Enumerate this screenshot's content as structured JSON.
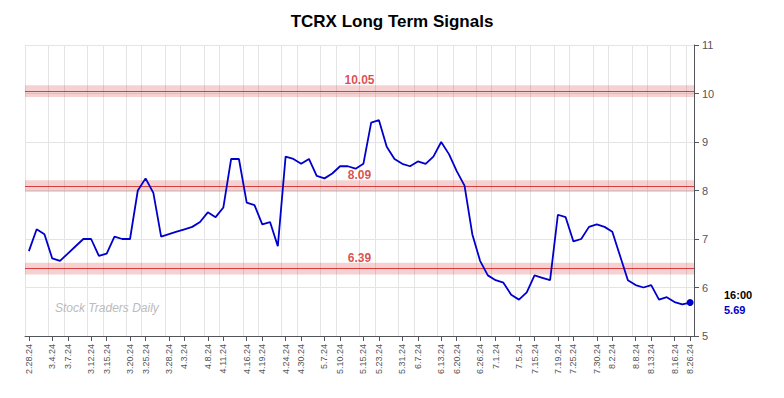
{
  "chart_data": {
    "type": "line",
    "title": "TCRX Long Term Signals",
    "categories": [
      "2.28.24",
      null,
      null,
      "3.4.24",
      null,
      "3.7.24",
      null,
      null,
      "3.12.24",
      null,
      "3.15.24",
      null,
      null,
      "3.20.24",
      null,
      "3.25.24",
      null,
      null,
      "3.28.24",
      null,
      "4.3.24",
      null,
      null,
      "4.8.24",
      null,
      "4.11.24",
      null,
      null,
      "4.16.24",
      null,
      "4.19.24",
      null,
      null,
      "4.24.24",
      null,
      "4.30.24",
      null,
      null,
      "5.7.24",
      null,
      "5.10.24",
      null,
      null,
      "5.15.24",
      null,
      "5.23.24",
      null,
      null,
      "5.31.24",
      null,
      "6.7.24",
      null,
      null,
      "6.13.24",
      null,
      "6.20.24",
      null,
      null,
      "6.26.24",
      null,
      "7.1.24",
      null,
      null,
      "7.5.24",
      null,
      "7.15.24",
      null,
      null,
      "7.19.24",
      null,
      "7.25.24",
      null,
      null,
      "7.30.24",
      null,
      "8.2.24",
      null,
      null,
      "8.8.24",
      null,
      "8.13.24",
      null,
      null,
      "8.16.24",
      null,
      "8.26.24"
    ],
    "values": [
      6.75,
      7.2,
      7.1,
      6.6,
      6.55,
      6.7,
      6.85,
      7.0,
      7.0,
      6.65,
      6.7,
      7.05,
      7.0,
      7.0,
      8.0,
      8.25,
      7.95,
      7.05,
      7.1,
      7.15,
      7.2,
      7.25,
      7.35,
      7.55,
      7.45,
      7.65,
      8.65,
      8.65,
      7.75,
      7.7,
      7.3,
      7.35,
      6.85,
      8.7,
      8.65,
      8.55,
      8.65,
      8.3,
      8.25,
      8.35,
      8.5,
      8.5,
      8.45,
      8.55,
      9.4,
      9.45,
      8.9,
      8.65,
      8.55,
      8.5,
      8.6,
      8.55,
      8.7,
      9.0,
      8.75,
      8.4,
      8.1,
      7.1,
      6.55,
      6.25,
      6.15,
      6.1,
      5.85,
      5.75,
      5.9,
      6.25,
      6.2,
      6.15,
      7.5,
      7.45,
      6.95,
      7.0,
      7.25,
      7.3,
      7.25,
      7.15,
      6.65,
      6.15,
      6.05,
      6.0,
      6.05,
      5.75,
      5.8,
      5.7,
      5.65,
      5.69
    ],
    "color": "#0000cc",
    "hlines": [
      {
        "y": 10.05,
        "label": "10.05",
        "color": "#cc0000"
      },
      {
        "y": 8.09,
        "label": "8.09",
        "color": "#cc0000"
      },
      {
        "y": 6.39,
        "label": "6.39",
        "color": "#cc0000"
      }
    ],
    "annotations": [
      {
        "text": "16:00",
        "x": "8.26.24"
      },
      {
        "text": "5.69",
        "x": "8.26.24",
        "color": "#0000cc"
      },
      {
        "text": "Stock Traders Daily",
        "color": "#bbbbbb"
      }
    ],
    "ylim": [
      5,
      11
    ],
    "yticks": [
      5,
      6,
      7,
      8,
      9,
      10,
      11
    ],
    "grid": true
  }
}
